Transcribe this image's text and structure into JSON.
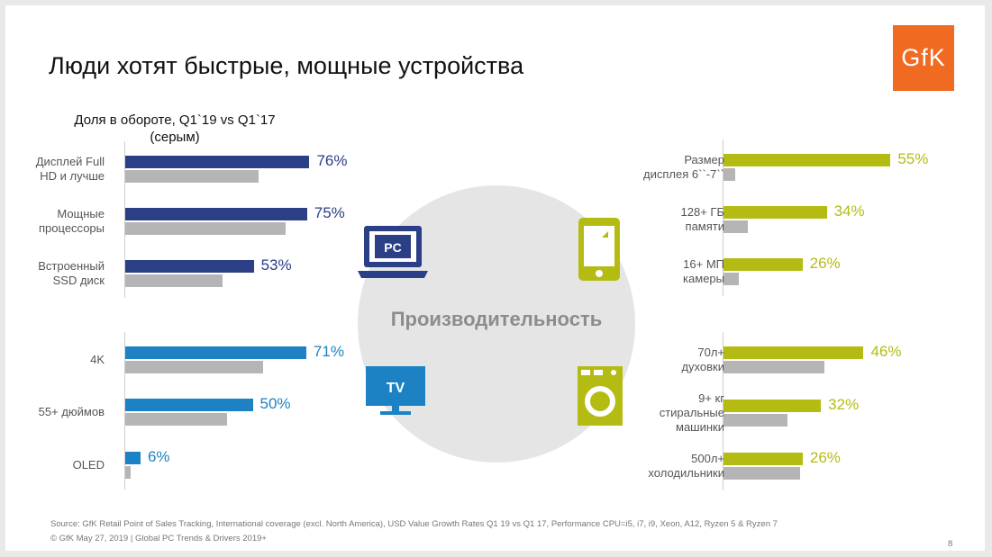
{
  "title": "Люди хотят быстрые, мощные устройства",
  "logo": "GfK",
  "subtitle": "Доля в обороте, Q1`19  vs Q1`17 (серым)",
  "center_label": "Производительность",
  "icons": {
    "pc": {
      "name": "laptop-icon",
      "label": "PC"
    },
    "tv": {
      "name": "tv-icon",
      "label": "TV"
    },
    "phone": {
      "name": "smartphone-icon"
    },
    "washer": {
      "name": "washing-machine-icon"
    }
  },
  "colors": {
    "pc": "#2b3f86",
    "tv": "#1c82c3",
    "phone": "#b4bc14",
    "gray": "#b5b5b5"
  },
  "chart_data": [
    {
      "type": "bar",
      "group": "PC",
      "categories": [
        "Дисплей Full\nHD и лучше",
        "Мощные\nпроцессоры",
        "Встроенный\nSSD диск"
      ],
      "series": [
        {
          "values": [
            76,
            75,
            53
          ]
        },
        {
          "values": [
            55,
            66,
            40
          ]
        }
      ],
      "labels": [
        "76%",
        "75%",
        "53%"
      ]
    },
    {
      "type": "bar",
      "group": "TV",
      "categories": [
        "4K",
        "55+ дюймов",
        "OLED"
      ],
      "series": [
        {
          "values": [
            71,
            50,
            6
          ]
        },
        {
          "values": [
            54,
            40,
            2
          ]
        }
      ],
      "labels": [
        "71%",
        "50%",
        "6%"
      ]
    },
    {
      "type": "bar",
      "group": "Smartphone",
      "categories": [
        "Размер\nдисплея 6``-7``",
        "128+ ГБ\nпамяти",
        "16+ МП\nкамеры"
      ],
      "series": [
        {
          "values": [
            55,
            34,
            26
          ]
        },
        {
          "values": [
            4,
            8,
            5
          ]
        }
      ],
      "labels": [
        "55%",
        "34%",
        "26%"
      ]
    },
    {
      "type": "bar",
      "group": "Appliances",
      "categories": [
        "70л+\nдуховки",
        "9+ кг\nстиральные\nмашинки",
        "500л+\nхолодильники"
      ],
      "series": [
        {
          "values": [
            46,
            32,
            26
          ]
        },
        {
          "values": [
            33,
            21,
            25
          ]
        }
      ],
      "labels": [
        "46%",
        "32%",
        "26%"
      ]
    }
  ],
  "footer": {
    "source": "Source: GfK Retail Point of Sales Tracking, International coverage (excl. North America), USD Value Growth Rates Q1 19 vs Q1 17, Performance CPU=i5, i7, i9, Xeon, A12, Ryzen 5 & Ryzen 7",
    "copyright": "© GfK May 27, 2019 | Global PC Trends & Drivers 2019+",
    "page": "8"
  }
}
